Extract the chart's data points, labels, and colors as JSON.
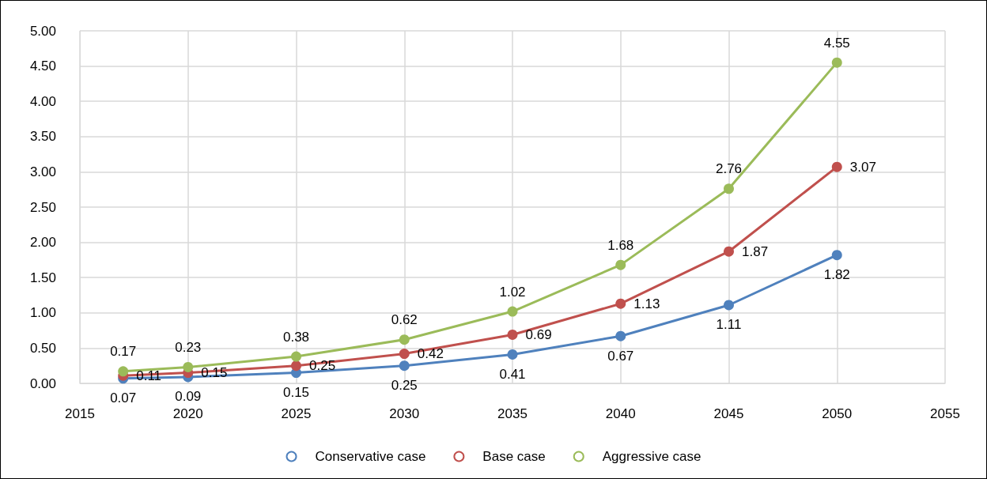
{
  "chart_data": {
    "type": "line",
    "x": [
      2017,
      2020,
      2025,
      2030,
      2035,
      2040,
      2045,
      2050
    ],
    "series": [
      {
        "name": "Conservative case",
        "color": "#4f81bd",
        "values": [
          0.07,
          0.09,
          0.15,
          0.25,
          0.41,
          0.67,
          1.11,
          1.82
        ]
      },
      {
        "name": "Base case",
        "color": "#c0504d",
        "values": [
          0.11,
          0.15,
          0.25,
          0.42,
          0.69,
          1.13,
          1.87,
          3.07
        ]
      },
      {
        "name": "Aggressive case",
        "color": "#9bbb59",
        "values": [
          0.17,
          0.23,
          0.38,
          0.62,
          1.02,
          1.68,
          2.76,
          4.55
        ]
      }
    ],
    "xlim": [
      2015,
      2055
    ],
    "xticks": [
      2015,
      2020,
      2025,
      2030,
      2035,
      2040,
      2045,
      2050,
      2055
    ],
    "ylim": [
      0,
      5
    ],
    "yticks": [
      {
        "value": 0,
        "label": "0.00"
      },
      {
        "value": 0.5,
        "label": "0.50"
      },
      {
        "value": 1,
        "label": "1.00"
      },
      {
        "value": 1.5,
        "label": "1.50"
      },
      {
        "value": 2,
        "label": "2.00"
      },
      {
        "value": 2.5,
        "label": "2.50"
      },
      {
        "value": 3,
        "label": "3.00"
      },
      {
        "value": 3.5,
        "label": "3.50"
      },
      {
        "value": 4,
        "label": "4.00"
      },
      {
        "value": 4.5,
        "label": "4.50"
      },
      {
        "value": 5,
        "label": "5.00"
      }
    ],
    "grid": true,
    "legend": "bottom",
    "marker": "circle",
    "line_style": "solid",
    "data_labels": true
  }
}
